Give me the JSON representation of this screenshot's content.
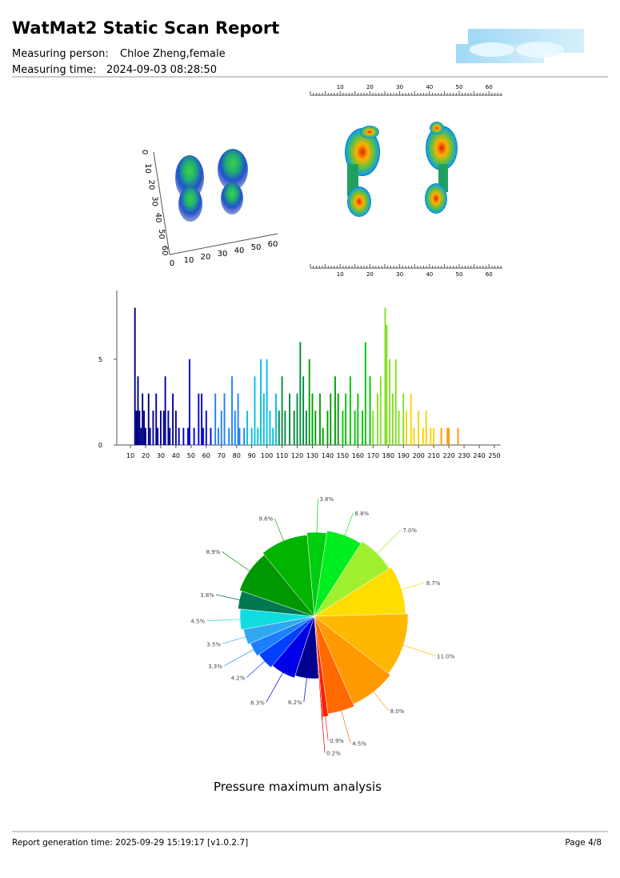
{
  "header": {
    "title": "WatMat2 Static Scan Report",
    "person_label": "Measuring person:",
    "person": "Chloe Zheng,female",
    "time_label": "Measuring time:",
    "time": "2024-09-03 08:28:50"
  },
  "plot3d": {
    "depth_ticks": [
      0,
      10,
      20,
      30,
      40,
      50,
      60
    ],
    "width_ticks": [
      0,
      10,
      20,
      30,
      40,
      50,
      60
    ]
  },
  "pressure_map": {
    "top_ticks": [
      10,
      20,
      30,
      40,
      50,
      60
    ],
    "bottom_ticks": [
      10,
      20,
      30,
      40,
      50,
      60
    ]
  },
  "chart_data": [
    {
      "type": "bar",
      "x": [
        13,
        14,
        15,
        16,
        17,
        18,
        19,
        20,
        22,
        23,
        25,
        27,
        28,
        30,
        32,
        33,
        35,
        36,
        38,
        40,
        42,
        45,
        48,
        49,
        52,
        55,
        57,
        58,
        60,
        63,
        66,
        68,
        70,
        72,
        75,
        77,
        79,
        81,
        82,
        85,
        87,
        90,
        92,
        94,
        96,
        98,
        100,
        102,
        104,
        106,
        108,
        110,
        112,
        115,
        118,
        120,
        122,
        124,
        126,
        128,
        130,
        132,
        135,
        137,
        140,
        142,
        145,
        147,
        150,
        152,
        155,
        158,
        160,
        163,
        165,
        168,
        170,
        173,
        175,
        178,
        179,
        181,
        183,
        185,
        187,
        190,
        192,
        195,
        197,
        200,
        203,
        205,
        208,
        210,
        215,
        219,
        220,
        226
      ],
      "values": [
        8,
        2,
        4,
        2,
        1,
        3,
        2,
        1,
        3,
        1,
        2,
        3,
        1,
        2,
        2,
        4,
        2,
        1,
        3,
        2,
        1,
        1,
        1,
        5,
        1,
        3,
        3,
        1,
        2,
        1,
        3,
        1,
        2,
        3,
        1,
        4,
        2,
        3,
        1,
        1,
        2,
        1,
        4,
        1,
        5,
        3,
        5,
        2,
        1,
        3,
        2,
        4,
        2,
        3,
        2,
        3,
        6,
        4,
        2,
        5,
        3,
        2,
        3,
        1,
        2,
        3,
        4,
        3,
        2,
        3,
        4,
        2,
        3,
        2,
        6,
        4,
        2,
        3,
        4,
        8,
        7,
        5,
        3,
        5,
        2,
        3,
        2,
        3,
        1,
        2,
        1,
        2,
        1,
        1,
        1,
        1,
        1,
        1
      ],
      "xlim": [
        1,
        254
      ],
      "ylim": [
        0,
        9
      ],
      "xticks": [
        10,
        20,
        30,
        40,
        50,
        60,
        70,
        80,
        90,
        100,
        110,
        120,
        130,
        140,
        150,
        160,
        170,
        180,
        190,
        200,
        210,
        220,
        230,
        240,
        250
      ],
      "yticks": [
        0,
        5
      ],
      "colormap": [
        "#000080",
        "#00009a",
        "#0000e0",
        "#1e80ff",
        "#00c0e0",
        "#008a40",
        "#00a000",
        "#00c800",
        "#80e020",
        "#ffd000",
        "#ff9900",
        "#cc0000"
      ]
    },
    {
      "type": "pie",
      "values": [
        6.2,
        6.3,
        4.2,
        3.3,
        3.5,
        4.5,
        3.8,
        8.9,
        9.6,
        3.8,
        6.8,
        7.0,
        8.7,
        11.0,
        8.0,
        4.5,
        0.9,
        0.2
      ],
      "value_labels": [
        "6.2%",
        "6.3%",
        "4.2%",
        "3.3%",
        "3.5%",
        "4.5%",
        "3.8%",
        "8.9%",
        "9.6%",
        "3.8%",
        "6.8%",
        "7.0%",
        "8.7%",
        "11.0%",
        "8.0%",
        "4.5%",
        "0.9%",
        "0.2%"
      ],
      "colors": [
        "#000090",
        "#0000e8",
        "#0040ff",
        "#1a80ff",
        "#30a8f0",
        "#10dce0",
        "#007850",
        "#009800",
        "#00b400",
        "#00cc10",
        "#00ee20",
        "#a0f030",
        "#ffdd00",
        "#ffb800",
        "#ff9a00",
        "#ff6a00",
        "#ff2000",
        "#cc0000"
      ]
    }
  ],
  "caption": "Pressure maximum analysis",
  "footer": {
    "generated": "Report generation time: 2025-09-29 15:19:17 [v1.0.2.7]",
    "page": "Page 4/8"
  }
}
